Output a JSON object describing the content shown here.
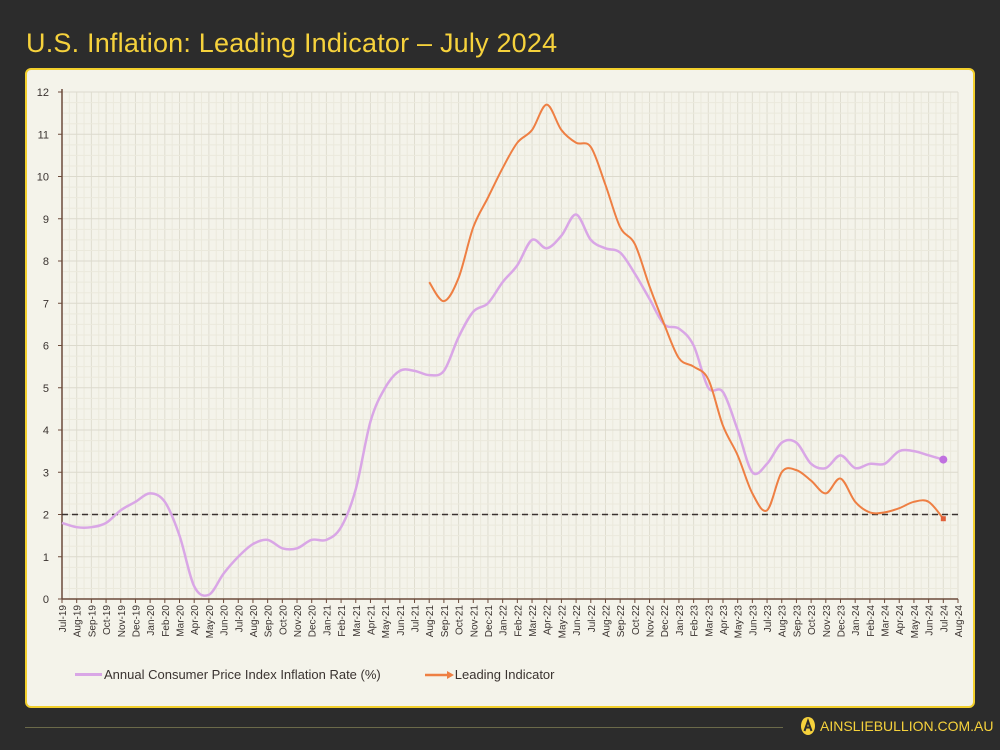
{
  "title": "U.S. Inflation: Leading Indicator – July 2024",
  "brand": {
    "text": "AINSLIEBULLION.COM.AU",
    "icon": "ainslie-a-logo"
  },
  "colors": {
    "background": "#2c2c2c",
    "accent": "#f2cf2c",
    "cpi": "#d9a6e6",
    "leading": "#ee7f43",
    "target": "#3a3330"
  },
  "chart_data": {
    "type": "line",
    "title": "",
    "xlabel": "",
    "ylabel": "",
    "ylim": [
      0,
      12
    ],
    "yticks": [
      0,
      1,
      2,
      3,
      4,
      5,
      6,
      7,
      8,
      9,
      10,
      11,
      12
    ],
    "grid": true,
    "legend_position": "bottom-left",
    "categories": [
      "Jul-19",
      "Aug-19",
      "Sep-19",
      "Oct-19",
      "Nov-19",
      "Dec-19",
      "Jan-20",
      "Feb-20",
      "Mar-20",
      "Apr-20",
      "May-20",
      "Jun-20",
      "Jul-20",
      "Aug-20",
      "Sep-20",
      "Oct-20",
      "Nov-20",
      "Dec-20",
      "Jan-21",
      "Feb-21",
      "Mar-21",
      "Apr-21",
      "May-21",
      "Jun-21",
      "Jul-21",
      "Aug-21",
      "Sep-21",
      "Oct-21",
      "Nov-21",
      "Dec-21",
      "Jan-22",
      "Feb-22",
      "Mar-22",
      "Apr-22",
      "May-22",
      "Jun-22",
      "Jul-22",
      "Aug-22",
      "Sep-22",
      "Oct-22",
      "Nov-22",
      "Dec-22",
      "Jan-23",
      "Feb-23",
      "Mar-23",
      "Apr-23",
      "May-23",
      "Jun-23",
      "Jul-23",
      "Aug-23",
      "Sep-23",
      "Oct-23",
      "Nov-23",
      "Dec-23",
      "Jan-24",
      "Feb-24",
      "Mar-24",
      "Apr-24",
      "May-24",
      "Jun-24",
      "Jul-24",
      "Aug-24"
    ],
    "reference_line": {
      "value": 2,
      "style": "dashed"
    },
    "series": [
      {
        "name": "Annual Consumer Price Index Inflation Rate (%)",
        "color": "#d9a6e6",
        "values": [
          1.8,
          1.7,
          1.7,
          1.8,
          2.1,
          2.3,
          2.5,
          2.3,
          1.5,
          0.3,
          0.1,
          0.6,
          1.0,
          1.3,
          1.4,
          1.2,
          1.2,
          1.4,
          1.4,
          1.7,
          2.6,
          4.2,
          5.0,
          5.4,
          5.4,
          5.3,
          5.4,
          6.2,
          6.8,
          7.0,
          7.5,
          7.9,
          8.5,
          8.3,
          8.6,
          9.1,
          8.5,
          8.3,
          8.2,
          7.7,
          7.1,
          6.5,
          6.4,
          6.0,
          5.0,
          4.9,
          4.0,
          3.0,
          3.2,
          3.7,
          3.7,
          3.2,
          3.1,
          3.4,
          3.1,
          3.2,
          3.2,
          3.5,
          3.5,
          3.4,
          3.3,
          null
        ]
      },
      {
        "name": "Leading Indicator",
        "color": "#ee7f43",
        "values": [
          null,
          null,
          null,
          null,
          null,
          null,
          null,
          null,
          null,
          null,
          null,
          null,
          null,
          null,
          null,
          null,
          null,
          null,
          null,
          null,
          null,
          null,
          null,
          null,
          null,
          7.5,
          7.05,
          7.6,
          8.8,
          9.5,
          10.2,
          10.8,
          11.1,
          11.7,
          11.1,
          10.8,
          10.7,
          9.8,
          8.8,
          8.4,
          7.4,
          6.5,
          5.7,
          5.5,
          5.2,
          4.1,
          3.4,
          2.5,
          2.1,
          3.0,
          3.05,
          2.8,
          2.5,
          2.85,
          2.3,
          2.05,
          2.05,
          2.15,
          2.3,
          2.3,
          1.9,
          null
        ]
      }
    ]
  }
}
